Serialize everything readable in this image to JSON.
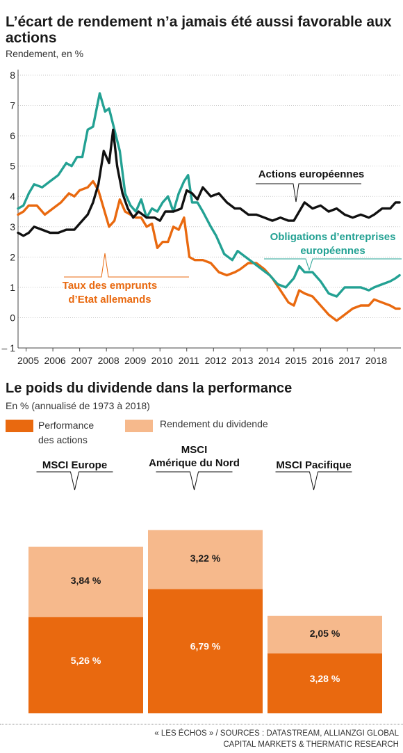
{
  "chart1": {
    "title": "L’écart de rendement n’a jamais été aussi favorable aux actions",
    "subtitle": "Rendement, en %",
    "chart_data": {
      "type": "line",
      "x_type": "date",
      "xlim": [
        2004.7,
        2019.0
      ],
      "ylim": [
        -1,
        8
      ],
      "yticks": [
        "8",
        "7",
        "6",
        "5",
        "4",
        "3",
        "2",
        "1",
        "0",
        "– 1"
      ],
      "ytick_values": [
        8,
        7,
        6,
        5,
        4,
        3,
        2,
        1,
        0,
        -1
      ],
      "xticks": [
        "2005",
        "2006",
        "2007",
        "2008",
        "2009",
        "2010",
        "2011",
        "2012",
        "2013",
        "2014",
        "2015",
        "2016",
        "2017",
        "2018"
      ],
      "xtick_values": [
        2005,
        2006,
        2007,
        2008,
        2009,
        2010,
        2011,
        2012,
        2013,
        2014,
        2015,
        2016,
        2017,
        2018
      ],
      "grid": "horizontal",
      "series": [
        {
          "name": "Actions européennes",
          "color": "#111111",
          "points": [
            [
              2004.7,
              2.8
            ],
            [
              2004.9,
              2.7
            ],
            [
              2005.1,
              2.8
            ],
            [
              2005.3,
              3.0
            ],
            [
              2005.6,
              2.9
            ],
            [
              2005.9,
              2.8
            ],
            [
              2006.2,
              2.8
            ],
            [
              2006.5,
              2.9
            ],
            [
              2006.8,
              2.9
            ],
            [
              2007.0,
              3.1
            ],
            [
              2007.3,
              3.4
            ],
            [
              2007.5,
              3.8
            ],
            [
              2007.7,
              4.4
            ],
            [
              2007.9,
              5.5
            ],
            [
              2008.1,
              5.1
            ],
            [
              2008.25,
              6.2
            ],
            [
              2008.4,
              5.0
            ],
            [
              2008.6,
              4.1
            ],
            [
              2008.8,
              3.6
            ],
            [
              2009.0,
              3.3
            ],
            [
              2009.2,
              3.5
            ],
            [
              2009.5,
              3.3
            ],
            [
              2009.8,
              3.3
            ],
            [
              2010.0,
              3.2
            ],
            [
              2010.2,
              3.5
            ],
            [
              2010.5,
              3.5
            ],
            [
              2010.8,
              3.6
            ],
            [
              2011.0,
              4.2
            ],
            [
              2011.2,
              4.1
            ],
            [
              2011.4,
              3.9
            ],
            [
              2011.6,
              4.3
            ],
            [
              2011.9,
              4.0
            ],
            [
              2012.2,
              4.1
            ],
            [
              2012.5,
              3.8
            ],
            [
              2012.8,
              3.6
            ],
            [
              2013.0,
              3.6
            ],
            [
              2013.3,
              3.4
            ],
            [
              2013.6,
              3.4
            ],
            [
              2013.9,
              3.3
            ],
            [
              2014.2,
              3.2
            ],
            [
              2014.5,
              3.3
            ],
            [
              2014.8,
              3.2
            ],
            [
              2015.0,
              3.2
            ],
            [
              2015.2,
              3.5
            ],
            [
              2015.4,
              3.8
            ],
            [
              2015.7,
              3.6
            ],
            [
              2016.0,
              3.7
            ],
            [
              2016.3,
              3.5
            ],
            [
              2016.6,
              3.6
            ],
            [
              2016.9,
              3.4
            ],
            [
              2017.2,
              3.3
            ],
            [
              2017.5,
              3.4
            ],
            [
              2017.8,
              3.3
            ],
            [
              2018.0,
              3.4
            ],
            [
              2018.3,
              3.6
            ],
            [
              2018.6,
              3.6
            ],
            [
              2018.8,
              3.8
            ],
            [
              2018.95,
              3.8
            ]
          ]
        },
        {
          "name": "Obligations d’entreprises européennes",
          "color": "#23a193",
          "points": [
            [
              2004.7,
              3.6
            ],
            [
              2004.9,
              3.7
            ],
            [
              2005.1,
              4.1
            ],
            [
              2005.3,
              4.4
            ],
            [
              2005.6,
              4.3
            ],
            [
              2005.9,
              4.5
            ],
            [
              2006.2,
              4.7
            ],
            [
              2006.5,
              5.1
            ],
            [
              2006.7,
              5.0
            ],
            [
              2006.9,
              5.3
            ],
            [
              2007.1,
              5.3
            ],
            [
              2007.3,
              6.2
            ],
            [
              2007.5,
              6.3
            ],
            [
              2007.75,
              7.4
            ],
            [
              2007.95,
              6.8
            ],
            [
              2008.1,
              6.9
            ],
            [
              2008.3,
              6.2
            ],
            [
              2008.5,
              5.5
            ],
            [
              2008.7,
              4.1
            ],
            [
              2008.9,
              3.7
            ],
            [
              2009.1,
              3.5
            ],
            [
              2009.3,
              3.9
            ],
            [
              2009.5,
              3.3
            ],
            [
              2009.7,
              3.6
            ],
            [
              2009.9,
              3.5
            ],
            [
              2010.1,
              3.8
            ],
            [
              2010.3,
              4.0
            ],
            [
              2010.5,
              3.5
            ],
            [
              2010.7,
              4.1
            ],
            [
              2010.9,
              4.5
            ],
            [
              2011.05,
              4.7
            ],
            [
              2011.2,
              3.8
            ],
            [
              2011.4,
              3.8
            ],
            [
              2011.6,
              3.5
            ],
            [
              2011.9,
              3.0
            ],
            [
              2012.1,
              2.7
            ],
            [
              2012.4,
              2.1
            ],
            [
              2012.7,
              1.9
            ],
            [
              2012.9,
              2.2
            ],
            [
              2013.2,
              2.0
            ],
            [
              2013.5,
              1.8
            ],
            [
              2013.8,
              1.6
            ],
            [
              2014.1,
              1.4
            ],
            [
              2014.4,
              1.1
            ],
            [
              2014.7,
              1.0
            ],
            [
              2015.0,
              1.3
            ],
            [
              2015.2,
              1.7
            ],
            [
              2015.4,
              1.5
            ],
            [
              2015.7,
              1.5
            ],
            [
              2016.0,
              1.2
            ],
            [
              2016.3,
              0.8
            ],
            [
              2016.6,
              0.7
            ],
            [
              2016.9,
              1.0
            ],
            [
              2017.2,
              1.0
            ],
            [
              2017.5,
              1.0
            ],
            [
              2017.8,
              0.9
            ],
            [
              2018.0,
              1.0
            ],
            [
              2018.3,
              1.1
            ],
            [
              2018.6,
              1.2
            ],
            [
              2018.8,
              1.3
            ],
            [
              2018.95,
              1.4
            ]
          ]
        },
        {
          "name": "Taux des emprunts d’Etat allemands",
          "color": "#e9690f",
          "points": [
            [
              2004.7,
              3.4
            ],
            [
              2004.9,
              3.5
            ],
            [
              2005.1,
              3.7
            ],
            [
              2005.4,
              3.7
            ],
            [
              2005.7,
              3.4
            ],
            [
              2006.0,
              3.6
            ],
            [
              2006.3,
              3.8
            ],
            [
              2006.6,
              4.1
            ],
            [
              2006.8,
              4.0
            ],
            [
              2007.0,
              4.2
            ],
            [
              2007.3,
              4.3
            ],
            [
              2007.5,
              4.5
            ],
            [
              2007.7,
              4.2
            ],
            [
              2007.9,
              3.6
            ],
            [
              2008.1,
              3.0
            ],
            [
              2008.3,
              3.2
            ],
            [
              2008.5,
              3.9
            ],
            [
              2008.7,
              3.5
            ],
            [
              2008.9,
              3.4
            ],
            [
              2009.1,
              3.3
            ],
            [
              2009.3,
              3.3
            ],
            [
              2009.5,
              3.0
            ],
            [
              2009.7,
              3.1
            ],
            [
              2009.9,
              2.3
            ],
            [
              2010.1,
              2.5
            ],
            [
              2010.3,
              2.5
            ],
            [
              2010.5,
              3.0
            ],
            [
              2010.7,
              2.9
            ],
            [
              2010.9,
              3.3
            ],
            [
              2011.1,
              2.0
            ],
            [
              2011.3,
              1.9
            ],
            [
              2011.6,
              1.9
            ],
            [
              2011.9,
              1.8
            ],
            [
              2012.2,
              1.5
            ],
            [
              2012.5,
              1.4
            ],
            [
              2012.8,
              1.5
            ],
            [
              2013.0,
              1.6
            ],
            [
              2013.3,
              1.8
            ],
            [
              2013.6,
              1.8
            ],
            [
              2013.9,
              1.6
            ],
            [
              2014.2,
              1.3
            ],
            [
              2014.5,
              0.9
            ],
            [
              2014.8,
              0.5
            ],
            [
              2015.0,
              0.4
            ],
            [
              2015.2,
              0.9
            ],
            [
              2015.4,
              0.8
            ],
            [
              2015.7,
              0.7
            ],
            [
              2016.0,
              0.4
            ],
            [
              2016.3,
              0.1
            ],
            [
              2016.6,
              -0.1
            ],
            [
              2016.9,
              0.1
            ],
            [
              2017.2,
              0.3
            ],
            [
              2017.5,
              0.4
            ],
            [
              2017.8,
              0.4
            ],
            [
              2018.0,
              0.6
            ],
            [
              2018.3,
              0.5
            ],
            [
              2018.6,
              0.4
            ],
            [
              2018.8,
              0.3
            ],
            [
              2018.95,
              0.3
            ]
          ]
        }
      ],
      "annotations": [
        {
          "text_lines": [
            "Actions européennes"
          ],
          "color": "#111111"
        },
        {
          "text_lines": [
            "Obligations d’entreprises",
            "européennes"
          ],
          "color": "#23a193"
        },
        {
          "text_lines": [
            "Taux des emprunts",
            "d’Etat allemands"
          ],
          "color": "#e9690f"
        }
      ]
    }
  },
  "chart2": {
    "title": "Le poids du dividende dans la performance",
    "subtitle": "En % (annualisé de 1973 à 2018)",
    "legend": [
      {
        "label_lines": [
          "Performance",
          "des actions"
        ],
        "color": "#e9690f"
      },
      {
        "label_lines": [
          "Rendement du dividende"
        ],
        "color": "#f6b98c"
      }
    ],
    "chart_data": {
      "type": "bar",
      "stacked": true,
      "categories": [
        [
          "MSCI Europe"
        ],
        [
          "MSCI",
          "Amérique du Nord"
        ],
        [
          "MSCI Pacifique"
        ]
      ],
      "series": [
        {
          "name": "Performance des actions",
          "values": [
            5.26,
            6.79,
            3.28
          ],
          "labels": [
            "5,26 %",
            "6,79 %",
            "3,28 %"
          ],
          "color": "#e9690f"
        },
        {
          "name": "Rendement du dividende",
          "values": [
            3.84,
            3.22,
            2.05
          ],
          "labels": [
            "3,84 %",
            "3,22 %",
            "2,05 %"
          ],
          "color": "#f6b98c"
        }
      ],
      "ylim": [
        0,
        12.0
      ]
    }
  },
  "footer": {
    "line1": "« LES ÉCHOS » / SOURCES : DATASTREAM, ALLIANZGI GLOBAL",
    "line2": "CAPITAL MARKETS & THERMATIC RESEARCH"
  }
}
